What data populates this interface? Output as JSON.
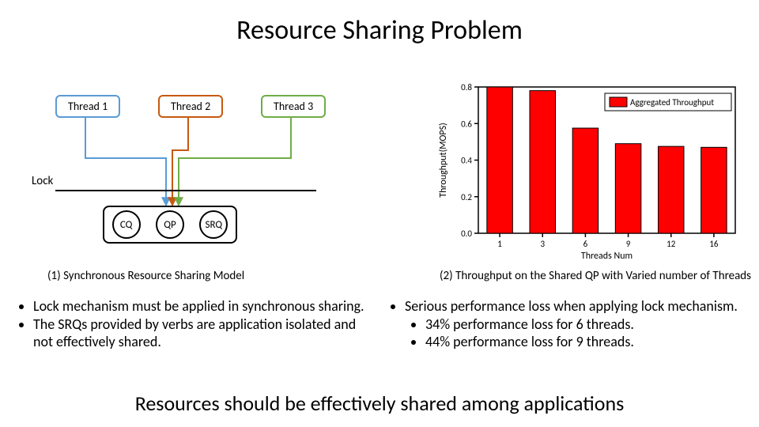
{
  "title": {
    "text": "Resource Sharing Problem",
    "fontsize": 34
  },
  "diagram": {
    "threads": [
      {
        "label": "Thread 1",
        "border": "#5b9bd5",
        "x": 30
      },
      {
        "label": "Thread 2",
        "border": "#c55a11",
        "x": 160
      },
      {
        "label": "Thread 3",
        "border": "#70ad47",
        "x": 290
      }
    ],
    "lock_label": "Lock",
    "resources": [
      "CQ",
      "QP",
      "SRQ"
    ],
    "arrow_colors": {
      "t1": "#5b9bd5",
      "t2": "#c55a11",
      "t3": "#70ad47"
    },
    "caption": "(1) Synchronous Resource Sharing Model"
  },
  "chart": {
    "type": "bar",
    "xlabel": "Threads Num",
    "ylabel": "Throughput(MOPS)",
    "categories": [
      "1",
      "3",
      "6",
      "9",
      "12",
      "16"
    ],
    "values": [
      0.87,
      0.78,
      0.575,
      0.49,
      0.475,
      0.47
    ],
    "bar_color": "#ff0000",
    "border_color": "#000000",
    "ylim": [
      0.0,
      0.8
    ],
    "ytick_step": 0.2,
    "legend_label": "Aggregated Throughput",
    "axis_fontsize": 12,
    "tick_fontsize": 11,
    "caption": "(2) Throughput on the Shared QP with Varied number of Threads"
  },
  "bullets_left": [
    "Lock mechanism must be applied in synchronous sharing.",
    "The SRQs provided by verbs are application isolated and not effectively shared."
  ],
  "bullets_right": {
    "top": "Serious performance loss when applying lock mechanism.",
    "sub": [
      "34% performance loss for 6 threads.",
      "44% performance loss for 9 threads."
    ]
  },
  "conclusion": {
    "text": "Resources should be effectively shared among applications",
    "fontsize": 26
  }
}
